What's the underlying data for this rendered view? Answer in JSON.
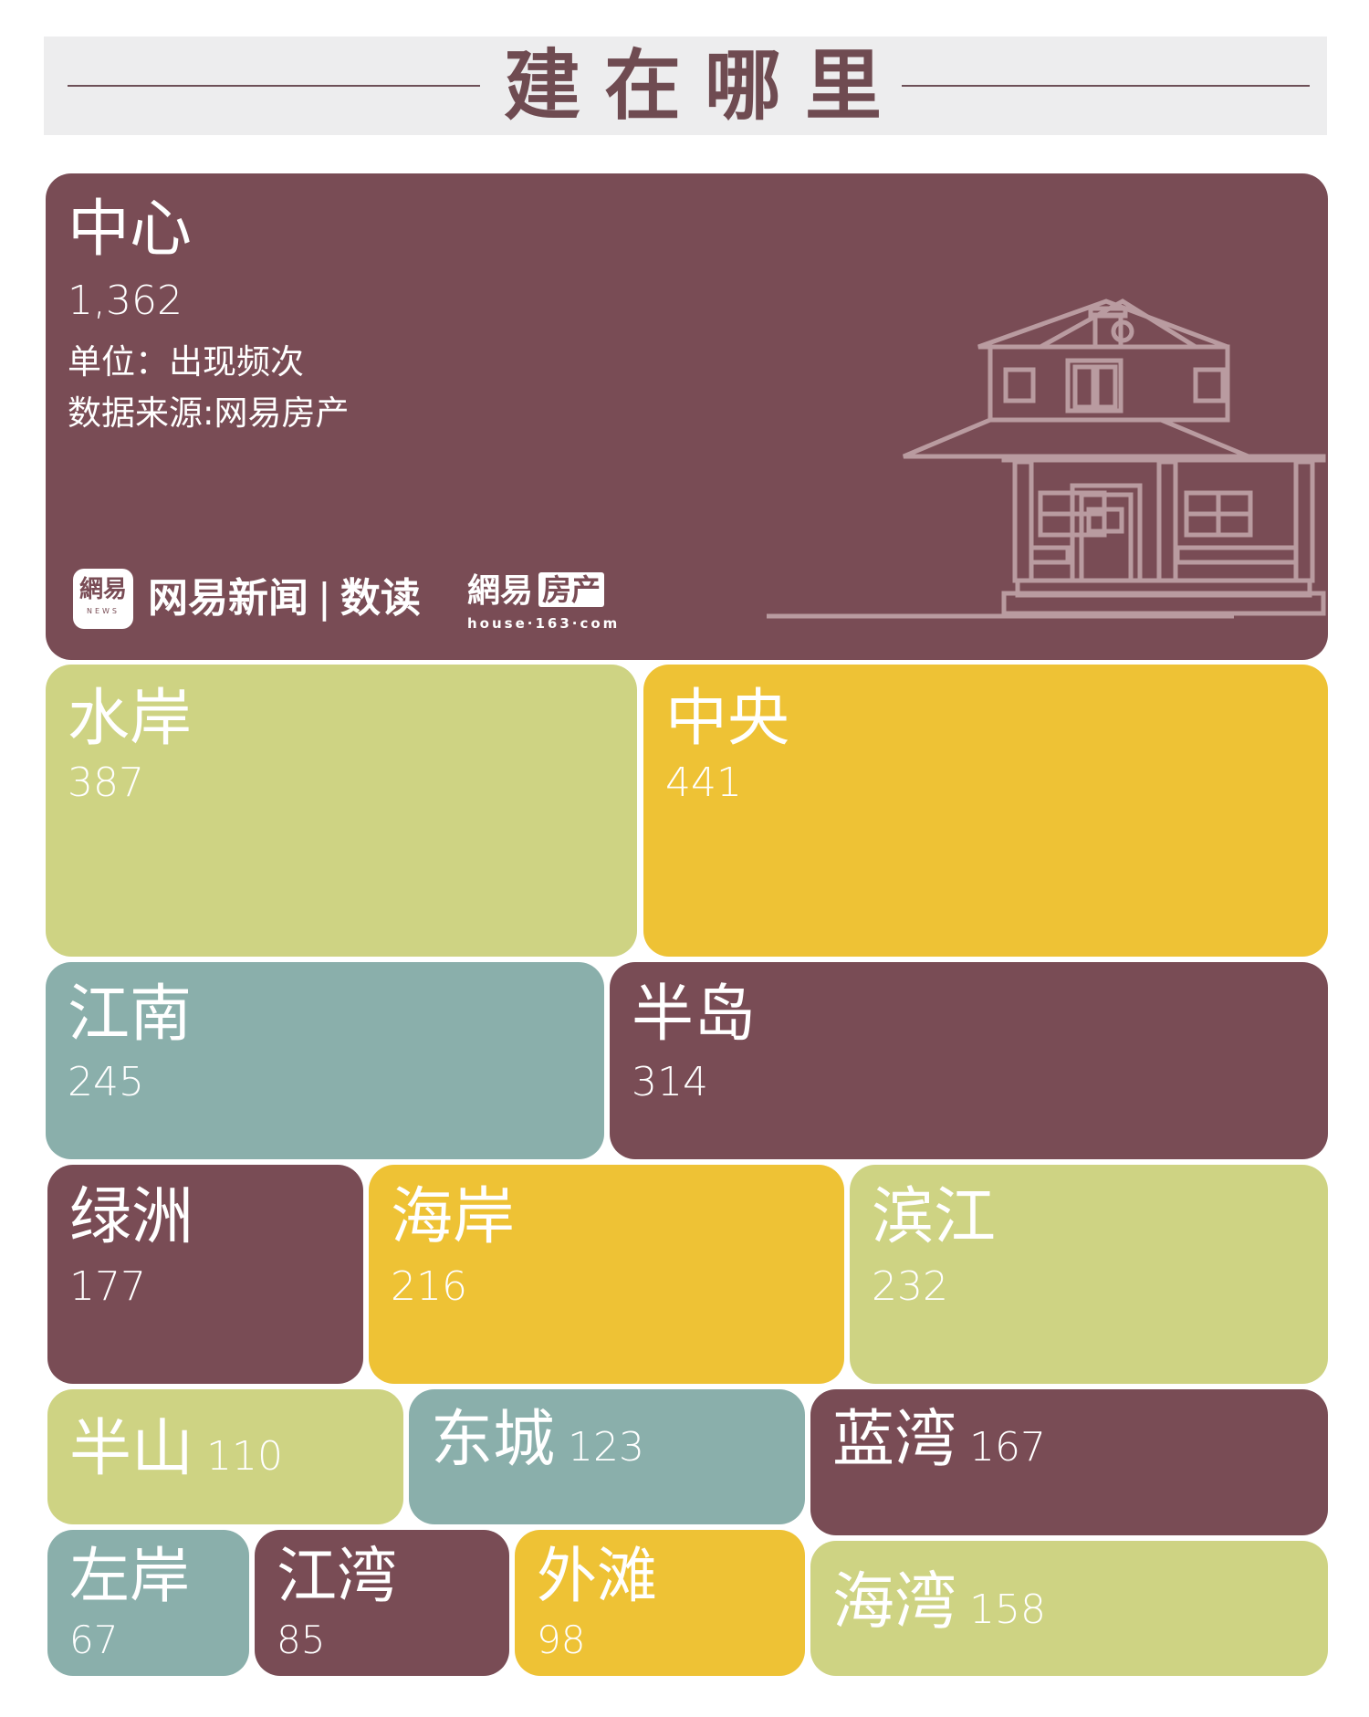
{
  "banner": {
    "title": "建在哪里"
  },
  "chart_data": {
    "type": "treemap",
    "title": "建在哪里",
    "unit_note": "单位：出现频次",
    "source_note": "数据来源:网易房产",
    "colors": {
      "plum": "#794c55",
      "lime": "#ced383",
      "gold": "#eec235",
      "teal": "#8aafab",
      "banner_bg": "#ededee",
      "title_color": "#6f4b51",
      "house_line": "#b99ba0"
    },
    "tiles": [
      {
        "name": "中心",
        "value": 1362,
        "value_label": "1,362",
        "color": "plum"
      },
      {
        "name": "水岸",
        "value": 387,
        "value_label": "387",
        "color": "lime"
      },
      {
        "name": "中央",
        "value": 441,
        "value_label": "441",
        "color": "gold"
      },
      {
        "name": "江南",
        "value": 245,
        "value_label": "245",
        "color": "teal"
      },
      {
        "name": "半岛",
        "value": 314,
        "value_label": "314",
        "color": "plum"
      },
      {
        "name": "绿洲",
        "value": 177,
        "value_label": "177",
        "color": "plum"
      },
      {
        "name": "海岸",
        "value": 216,
        "value_label": "216",
        "color": "gold"
      },
      {
        "name": "滨江",
        "value": 232,
        "value_label": "232",
        "color": "lime"
      },
      {
        "name": "半山",
        "value": 110,
        "value_label": "110",
        "color": "lime"
      },
      {
        "name": "东城",
        "value": 123,
        "value_label": "123",
        "color": "teal"
      },
      {
        "name": "蓝湾",
        "value": 167,
        "value_label": "167",
        "color": "plum"
      },
      {
        "name": "左岸",
        "value": 67,
        "value_label": "67",
        "color": "teal"
      },
      {
        "name": "江湾",
        "value": 85,
        "value_label": "85",
        "color": "plum"
      },
      {
        "name": "外滩",
        "value": 98,
        "value_label": "98",
        "color": "gold"
      },
      {
        "name": "海湾",
        "value": 158,
        "value_label": "158",
        "color": "lime"
      }
    ]
  },
  "brands": {
    "news_logo_text": "網易",
    "news_logo_sub": "NEWS",
    "news_name": "网易新闻",
    "separator": "|",
    "news_section": "数读",
    "house_logo_text": "網易",
    "house_logo_tag": "房产",
    "house_url": "house·163·com"
  }
}
